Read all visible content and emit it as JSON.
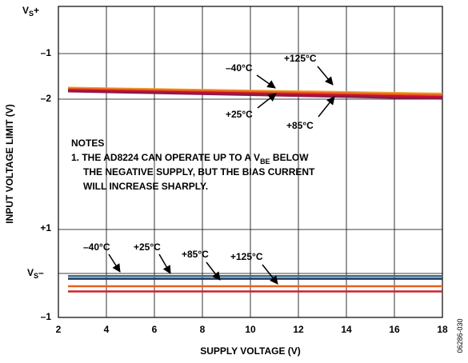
{
  "chart_data": {
    "type": "line",
    "xlabel": "SUPPLY VOLTAGE (V)",
    "ylabel": "INPUT VOLTAGE LIMIT (V)",
    "xlim": [
      2,
      18
    ],
    "x_ticks": [
      "2",
      "4",
      "6",
      "8",
      "10",
      "12",
      "14",
      "16",
      "18"
    ],
    "y_tick_labels": {
      "vs_plus": "V",
      "vs_plus_sub": "S",
      "vs_plus_suffix": "+",
      "neg1": "–1",
      "neg2": "–2",
      "pos1": "+1",
      "vs_minus": "V",
      "vs_minus_sub": "S",
      "vs_minus_suffix": "–",
      "neg1_lower": "–1"
    },
    "grid": true,
    "upper_series": [
      {
        "name": "–40°C",
        "color": "#f0a030",
        "x": [
          2.4,
          18
        ],
        "y": [
          -1.75,
          -1.88
        ]
      },
      {
        "name": "+25°C",
        "color": "#e8601c",
        "x": [
          2.4,
          18
        ],
        "y": [
          -1.77,
          -1.91
        ]
      },
      {
        "name": "+85°C",
        "color": "#c8102e",
        "x": [
          2.4,
          18
        ],
        "y": [
          -1.8,
          -1.95
        ]
      },
      {
        "name": "+125°C",
        "color": "#8b1a4a",
        "x": [
          2.4,
          18
        ],
        "y": [
          -1.83,
          -1.99
        ]
      }
    ],
    "lower_series": [
      {
        "name": "–40°C",
        "color": "#3a6b8c",
        "x": [
          2.4,
          18
        ],
        "y": [
          -0.06,
          -0.06
        ]
      },
      {
        "name": "+25°C",
        "color": "#1a3a5c",
        "x": [
          2.4,
          18
        ],
        "y": [
          -0.12,
          -0.12
        ]
      },
      {
        "name": "+85°C",
        "color": "#e8601c",
        "x": [
          2.4,
          18
        ],
        "y": [
          -0.29,
          -0.29
        ]
      },
      {
        "name": "+125°C",
        "color": "#d0202a",
        "x": [
          2.4,
          18
        ],
        "y": [
          -0.41,
          -0.41
        ]
      }
    ],
    "annotations": {
      "upper": [
        "–40°C",
        "+125°C",
        "+25°C",
        "+85°C"
      ],
      "lower": [
        "–40°C",
        "+25°C",
        "+85°C",
        "+125°C"
      ]
    },
    "notes": {
      "heading": "NOTES",
      "line1_a": "1. THE AD8224 CAN OPERATE UP TO A V",
      "line1_sub": "BE",
      "line1_b": " BELOW",
      "line2": "THE NEGATIVE SUPPLY, BUT THE BIAS CURRENT",
      "line3": "WILL INCREASE SHARPLY."
    },
    "figure_id": "06286-030"
  }
}
